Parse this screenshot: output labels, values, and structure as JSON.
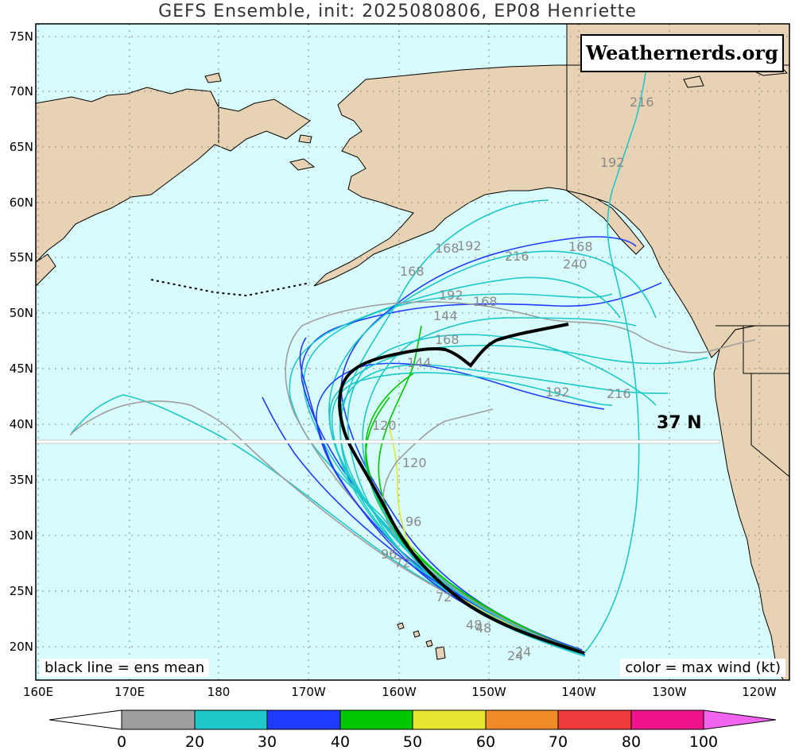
{
  "title": "GEFS Ensemble, init: 2025080806, EP08 Henriette",
  "watermark": "Weathernerds.org",
  "legend_left": "black line = ens mean",
  "legend_right": "color = max wind (kt)",
  "reference_line_label": "37 N",
  "lat_labels": [
    "75N",
    "70N",
    "65N",
    "60N",
    "55N",
    "50N",
    "45N",
    "40N",
    "35N",
    "30N",
    "25N",
    "20N"
  ],
  "lon_labels": [
    "160E",
    "170E",
    "180",
    "170W",
    "160W",
    "150W",
    "140W",
    "130W",
    "120W"
  ],
  "colorbar": {
    "ticks": [
      "0",
      "20",
      "30",
      "40",
      "50",
      "60",
      "70",
      "80",
      "100"
    ],
    "colors": [
      "#ffffff",
      "#9e9e9e",
      "#1ec8c8",
      "#1e3cff",
      "#00c800",
      "#e6e632",
      "#f08c28",
      "#f03c3c",
      "#f0148c",
      "#f064f0"
    ]
  },
  "colors": {
    "ocean": "#d8fcfc",
    "land": "#e8d2b4",
    "mean_track": "#000000",
    "grid": "#888888"
  },
  "hour_labels": [
    "216",
    "192",
    "168",
    "192",
    "216",
    "240",
    "168",
    "168",
    "192",
    "168",
    "144",
    "168",
    "144",
    "192",
    "216",
    "120",
    "120",
    "96",
    "96",
    "72",
    "72",
    "48",
    "48",
    "24",
    "24"
  ]
}
